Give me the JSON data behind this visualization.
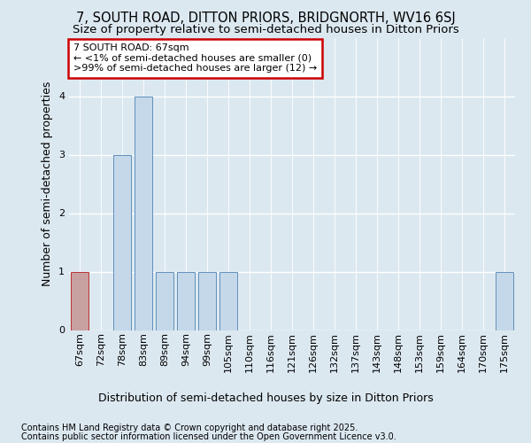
{
  "title": "7, SOUTH ROAD, DITTON PRIORS, BRIDGNORTH, WV16 6SJ",
  "subtitle": "Size of property relative to semi-detached houses in Ditton Priors",
  "xlabel": "Distribution of semi-detached houses by size in Ditton Priors",
  "ylabel": "Number of semi-detached properties",
  "categories": [
    "67sqm",
    "72sqm",
    "78sqm",
    "83sqm",
    "89sqm",
    "94sqm",
    "99sqm",
    "105sqm",
    "110sqm",
    "116sqm",
    "121sqm",
    "126sqm",
    "132sqm",
    "137sqm",
    "143sqm",
    "148sqm",
    "153sqm",
    "159sqm",
    "164sqm",
    "170sqm",
    "175sqm"
  ],
  "values": [
    1,
    0,
    3,
    4,
    1,
    1,
    1,
    1,
    0,
    0,
    0,
    0,
    0,
    0,
    0,
    0,
    0,
    0,
    0,
    0,
    1
  ],
  "highlight_index": 0,
  "bar_color": "#c5d8ea",
  "highlight_color": "#c8a0a0",
  "bar_edge_color": "#6090bb",
  "highlight_edge_color": "#bb3333",
  "ylim": [
    0,
    5
  ],
  "yticks": [
    0,
    1,
    2,
    3,
    4,
    5
  ],
  "annotation_title": "7 SOUTH ROAD: 67sqm",
  "annotation_line1": "← <1% of semi-detached houses are smaller (0)",
  "annotation_line2": ">99% of semi-detached houses are larger (12) →",
  "annotation_box_color": "#ffffff",
  "annotation_border_color": "#cc0000",
  "footnote1": "Contains HM Land Registry data © Crown copyright and database right 2025.",
  "footnote2": "Contains public sector information licensed under the Open Government Licence v3.0.",
  "background_color": "#dce8f0",
  "grid_color": "#ffffff",
  "title_fontsize": 10.5,
  "subtitle_fontsize": 9.5,
  "axis_label_fontsize": 9,
  "tick_fontsize": 8,
  "annotation_fontsize": 8,
  "footnote_fontsize": 7
}
